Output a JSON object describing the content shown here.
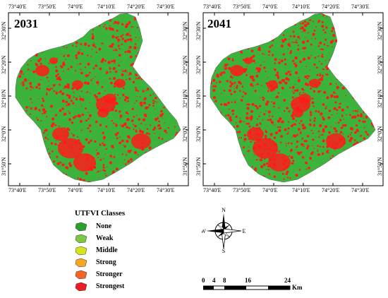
{
  "maps": [
    {
      "year": "2031",
      "top_labels": [
        "73°40'E",
        "73°50'E",
        "74°0'E",
        "74°10'E",
        "74°20'E",
        "74°30'E"
      ],
      "bottom_labels": [
        "73°40'E",
        "73°50'E",
        "74°0'E",
        "74°10'E",
        "74°20'E",
        "74°30'E"
      ],
      "left_labels": [
        "32°30'N",
        "32°20'N",
        "32°10'N",
        "32°0'N",
        "31°50'N"
      ],
      "right_labels": [
        "32°30'N",
        "32°20'N",
        "32°10'N",
        "32°0'N",
        "31°50'N"
      ]
    },
    {
      "year": "2041",
      "top_labels": [
        "73°40'E",
        "73°50'E",
        "74°0'E",
        "74°10'E",
        "74°20'E",
        "74°30'E"
      ],
      "bottom_labels": [
        "73°40'E",
        "73°50'E",
        "74°0'E",
        "74°10'E",
        "74°20'E",
        "74°30'E"
      ],
      "left_labels": [
        "32°30'N",
        "32°20'N",
        "32°10'N",
        "32°0'N",
        "31°50'N"
      ],
      "right_labels": [
        "32°30'N",
        "32°20'N",
        "32°10'N",
        "32°0'N",
        "31°50'N"
      ]
    }
  ],
  "legend": {
    "title": "UTFVI Classes",
    "items": [
      {
        "label": "None",
        "color": "#2ca02c"
      },
      {
        "label": "Weak",
        "color": "#7ac943"
      },
      {
        "label": "Middle",
        "color": "#d4e619"
      },
      {
        "label": "Strong",
        "color": "#f5a623"
      },
      {
        "label": "Stronger",
        "color": "#f26522"
      },
      {
        "label": "Strongest",
        "color": "#ed1c24"
      }
    ]
  },
  "north_arrow": {
    "n": "N",
    "e": "E",
    "s": "S",
    "w": "W"
  },
  "scale_bar": {
    "ticks": [
      "0",
      "4",
      "8",
      "16",
      "24"
    ],
    "unit": "Km"
  },
  "colors": {
    "green": "#3cb43c",
    "red": "#ff1a1a"
  }
}
